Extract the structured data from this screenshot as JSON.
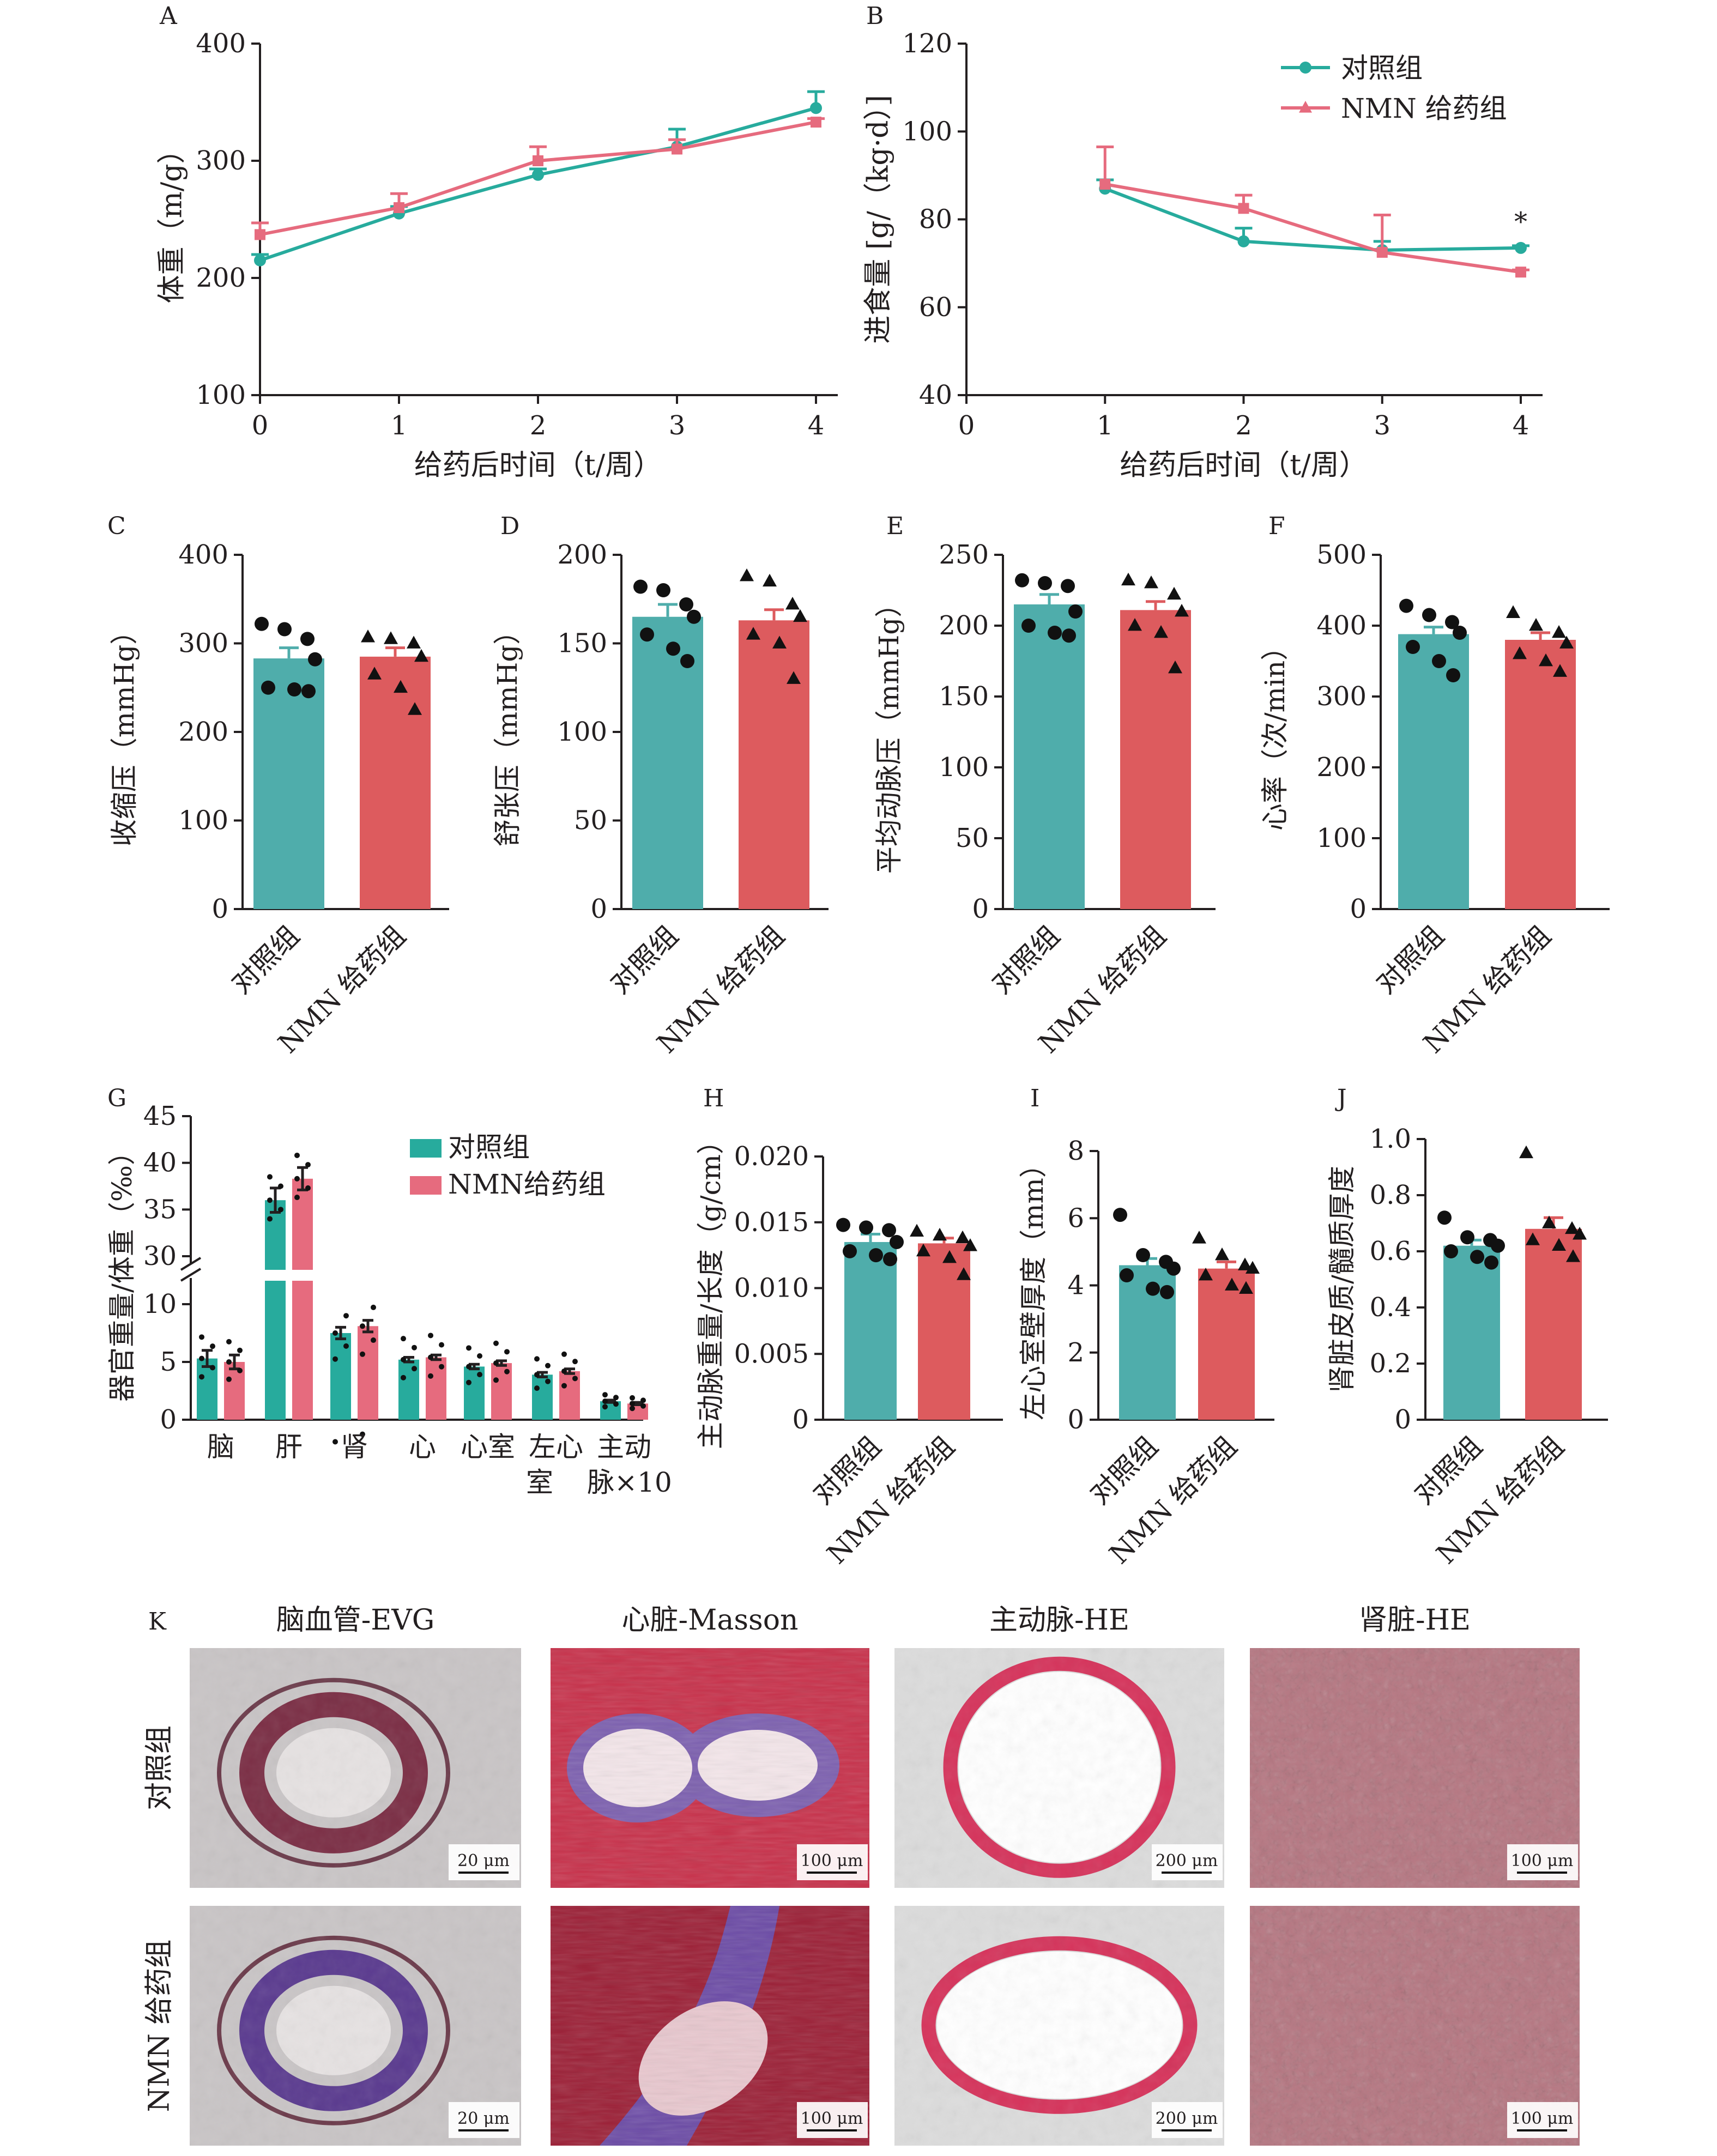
{
  "colors": {
    "teal": "#27ab9d",
    "teal_bar": "#4fadab",
    "red": "#e66b7e",
    "red_bar": "#dd5b5e",
    "marker": "#111111"
  },
  "legend": {
    "control": "对照组",
    "nmn": "NMN 给药组",
    "nmn_compact": "NMN给药组"
  },
  "chart_data": [
    {
      "panel": "A",
      "type": "line",
      "xlabel": "给药后时间（t/周）",
      "ylabel": "体重（m/g）",
      "x": [
        0,
        1,
        2,
        3,
        4
      ],
      "xlim": [
        0,
        4
      ],
      "ylim": [
        100,
        400
      ],
      "xticks": [
        "0",
        "1",
        "2",
        "3",
        "4"
      ],
      "yticks": [
        "100",
        "200",
        "300",
        "400"
      ],
      "series": [
        {
          "name": "对照组",
          "values": [
            215,
            255,
            288,
            312,
            345
          ],
          "err": [
            5,
            6,
            5,
            15,
            14
          ]
        },
        {
          "name": "NMN 给药组",
          "values": [
            237,
            260,
            300,
            310,
            333
          ],
          "err": [
            10,
            12,
            12,
            8,
            3
          ]
        }
      ]
    },
    {
      "panel": "B",
      "type": "line",
      "xlabel": "给药后时间（t/周）",
      "ylabel": "进食量 [g/（kg·d）]",
      "x": [
        1,
        2,
        3,
        4
      ],
      "xlim": [
        0,
        4
      ],
      "ylim": [
        40,
        120
      ],
      "xticks": [
        "0",
        "1",
        "2",
        "3",
        "4"
      ],
      "yticks": [
        "40",
        "60",
        "80",
        "100",
        "120"
      ],
      "annotation": "*",
      "series": [
        {
          "name": "对照组",
          "values": [
            87,
            75,
            73,
            73.5
          ],
          "err": [
            2,
            3,
            2,
            0.5
          ]
        },
        {
          "name": "NMN 给药组",
          "values": [
            88,
            82.5,
            72.5,
            68
          ],
          "err": [
            8.5,
            3,
            8.5,
            0.5
          ]
        }
      ]
    },
    {
      "panel": "C",
      "type": "bar",
      "ylabel": "收缩压（mmHg）",
      "ylim": [
        0,
        400
      ],
      "yticks": [
        "0",
        "100",
        "200",
        "300",
        "400"
      ],
      "categories": [
        "对照组",
        "NMN 给药组"
      ],
      "values": [
        283,
        285
      ],
      "err": [
        12,
        10
      ],
      "points": [
        [
          322,
          316,
          305,
          282,
          250,
          248,
          246
        ],
        [
          307,
          305,
          300,
          285,
          265,
          250,
          225
        ]
      ]
    },
    {
      "panel": "D",
      "type": "bar",
      "ylabel": "舒张压（mmHg）",
      "ylim": [
        0,
        200
      ],
      "yticks": [
        "0",
        "50",
        "100",
        "150",
        "200"
      ],
      "categories": [
        "对照组",
        "NMN 给药组"
      ],
      "values": [
        165,
        163
      ],
      "err": [
        7,
        6
      ],
      "points": [
        [
          182,
          180,
          172,
          165,
          155,
          147,
          140
        ],
        [
          188,
          185,
          172,
          165,
          155,
          150,
          130
        ]
      ]
    },
    {
      "panel": "E",
      "type": "bar",
      "ylabel": "平均动脉压（mmHg）",
      "ylim": [
        0,
        250
      ],
      "yticks": [
        "0",
        "50",
        "100",
        "150",
        "200",
        "250"
      ],
      "categories": [
        "对照组",
        "NMN 给药组"
      ],
      "values": [
        215,
        211
      ],
      "err": [
        7,
        6
      ],
      "points": [
        [
          232,
          230,
          228,
          210,
          200,
          195,
          193
        ],
        [
          232,
          230,
          222,
          210,
          200,
          195,
          170
        ]
      ]
    },
    {
      "panel": "F",
      "type": "bar",
      "ylabel": "心率（次/min）",
      "ylim": [
        0,
        500
      ],
      "yticks": [
        "0",
        "100",
        "200",
        "300",
        "400",
        "500"
      ],
      "categories": [
        "对照组",
        "NMN 给药组"
      ],
      "values": [
        388,
        380
      ],
      "err": [
        10,
        10
      ],
      "points": [
        [
          428,
          415,
          405,
          390,
          370,
          350,
          330
        ],
        [
          418,
          400,
          390,
          375,
          360,
          350,
          335
        ]
      ]
    },
    {
      "panel": "G",
      "type": "bar",
      "ylabel": "器官重量/体重（‰）",
      "yticks_low": [
        "0",
        "5",
        "10"
      ],
      "yticks_high": [
        "30",
        "35",
        "40",
        "45"
      ],
      "categories": [
        "脑",
        "肝",
        "肾",
        "心",
        "心室",
        "左心室",
        "主动脉×10"
      ],
      "category_lines": [
        [
          "脑"
        ],
        [
          "肝"
        ],
        [
          "肾"
        ],
        [
          "心"
        ],
        [
          "心室"
        ],
        [
          "左心",
          "室"
        ],
        [
          "主动",
          "脉×10"
        ]
      ],
      "series": [
        {
          "name": "对照组",
          "values": [
            5.3,
            36,
            7.5,
            5.2,
            4.6,
            3.9,
            1.6
          ],
          "err": [
            0.7,
            1.3,
            0.5,
            0.2,
            0.2,
            0.2,
            0.1
          ]
        },
        {
          "name": "NMN给药组",
          "values": [
            5.0,
            38.3,
            8.1,
            5.4,
            4.9,
            4.2,
            1.4
          ],
          "err": [
            0.6,
            1.2,
            0.5,
            0.2,
            0.2,
            0.2,
            0.1
          ]
        }
      ]
    },
    {
      "panel": "H",
      "type": "bar",
      "ylabel": "主动脉重量/长度（g/cm）",
      "ylim": [
        0,
        0.02
      ],
      "yticks": [
        "0",
        "0.005",
        "0.010",
        "0.015",
        "0.020"
      ],
      "categories": [
        "对照组",
        "NMN 给药组"
      ],
      "values": [
        0.0135,
        0.0134
      ],
      "err": [
        0.0006,
        0.0004
      ],
      "points": [
        [
          0.0148,
          0.0146,
          0.0144,
          0.0135,
          0.0128,
          0.0125,
          0.0122
        ],
        [
          0.0143,
          0.014,
          0.0138,
          0.0132,
          0.0128,
          0.0123,
          0.011
        ]
      ]
    },
    {
      "panel": "I",
      "type": "bar",
      "ylabel": "左心室壁厚度（mm）",
      "ylim": [
        0,
        8
      ],
      "yticks": [
        "0",
        "2",
        "4",
        "6",
        "8"
      ],
      "categories": [
        "对照组",
        "NMN 给药组"
      ],
      "values": [
        4.6,
        4.5
      ],
      "err": [
        0.2,
        0.2
      ],
      "points": [
        [
          6.1,
          4.9,
          4.7,
          4.5,
          4.3,
          3.9,
          3.8
        ],
        [
          5.4,
          4.9,
          4.6,
          4.5,
          4.3,
          4.0,
          3.9
        ]
      ]
    },
    {
      "panel": "J",
      "type": "bar",
      "ylabel": "肾脏皮质/髓质厚度",
      "ylim": [
        0,
        1.0
      ],
      "yticks": [
        "0",
        "0.2",
        "0.4",
        "0.6",
        "0.8",
        "1.0"
      ],
      "categories": [
        "对照组",
        "NMN 给药组"
      ],
      "values": [
        0.62,
        0.68
      ],
      "err": [
        0.02,
        0.04
      ],
      "points": [
        [
          0.72,
          0.65,
          0.64,
          0.62,
          0.6,
          0.58,
          0.56
        ],
        [
          0.95,
          0.7,
          0.68,
          0.66,
          0.64,
          0.62,
          0.58
        ]
      ]
    }
  ],
  "histology": {
    "panel": "K",
    "columns": [
      "脑血管-EVG",
      "心脏-Masson",
      "主动脉-HE",
      "肾脏-HE"
    ],
    "rows": [
      "对照组",
      "NMN 给药组"
    ],
    "scale_bars": [
      [
        "20 μm",
        "100 μm",
        "200 μm",
        "100 μm"
      ],
      [
        "20 μm",
        "100 μm",
        "200 μm",
        "100 μm"
      ]
    ]
  }
}
